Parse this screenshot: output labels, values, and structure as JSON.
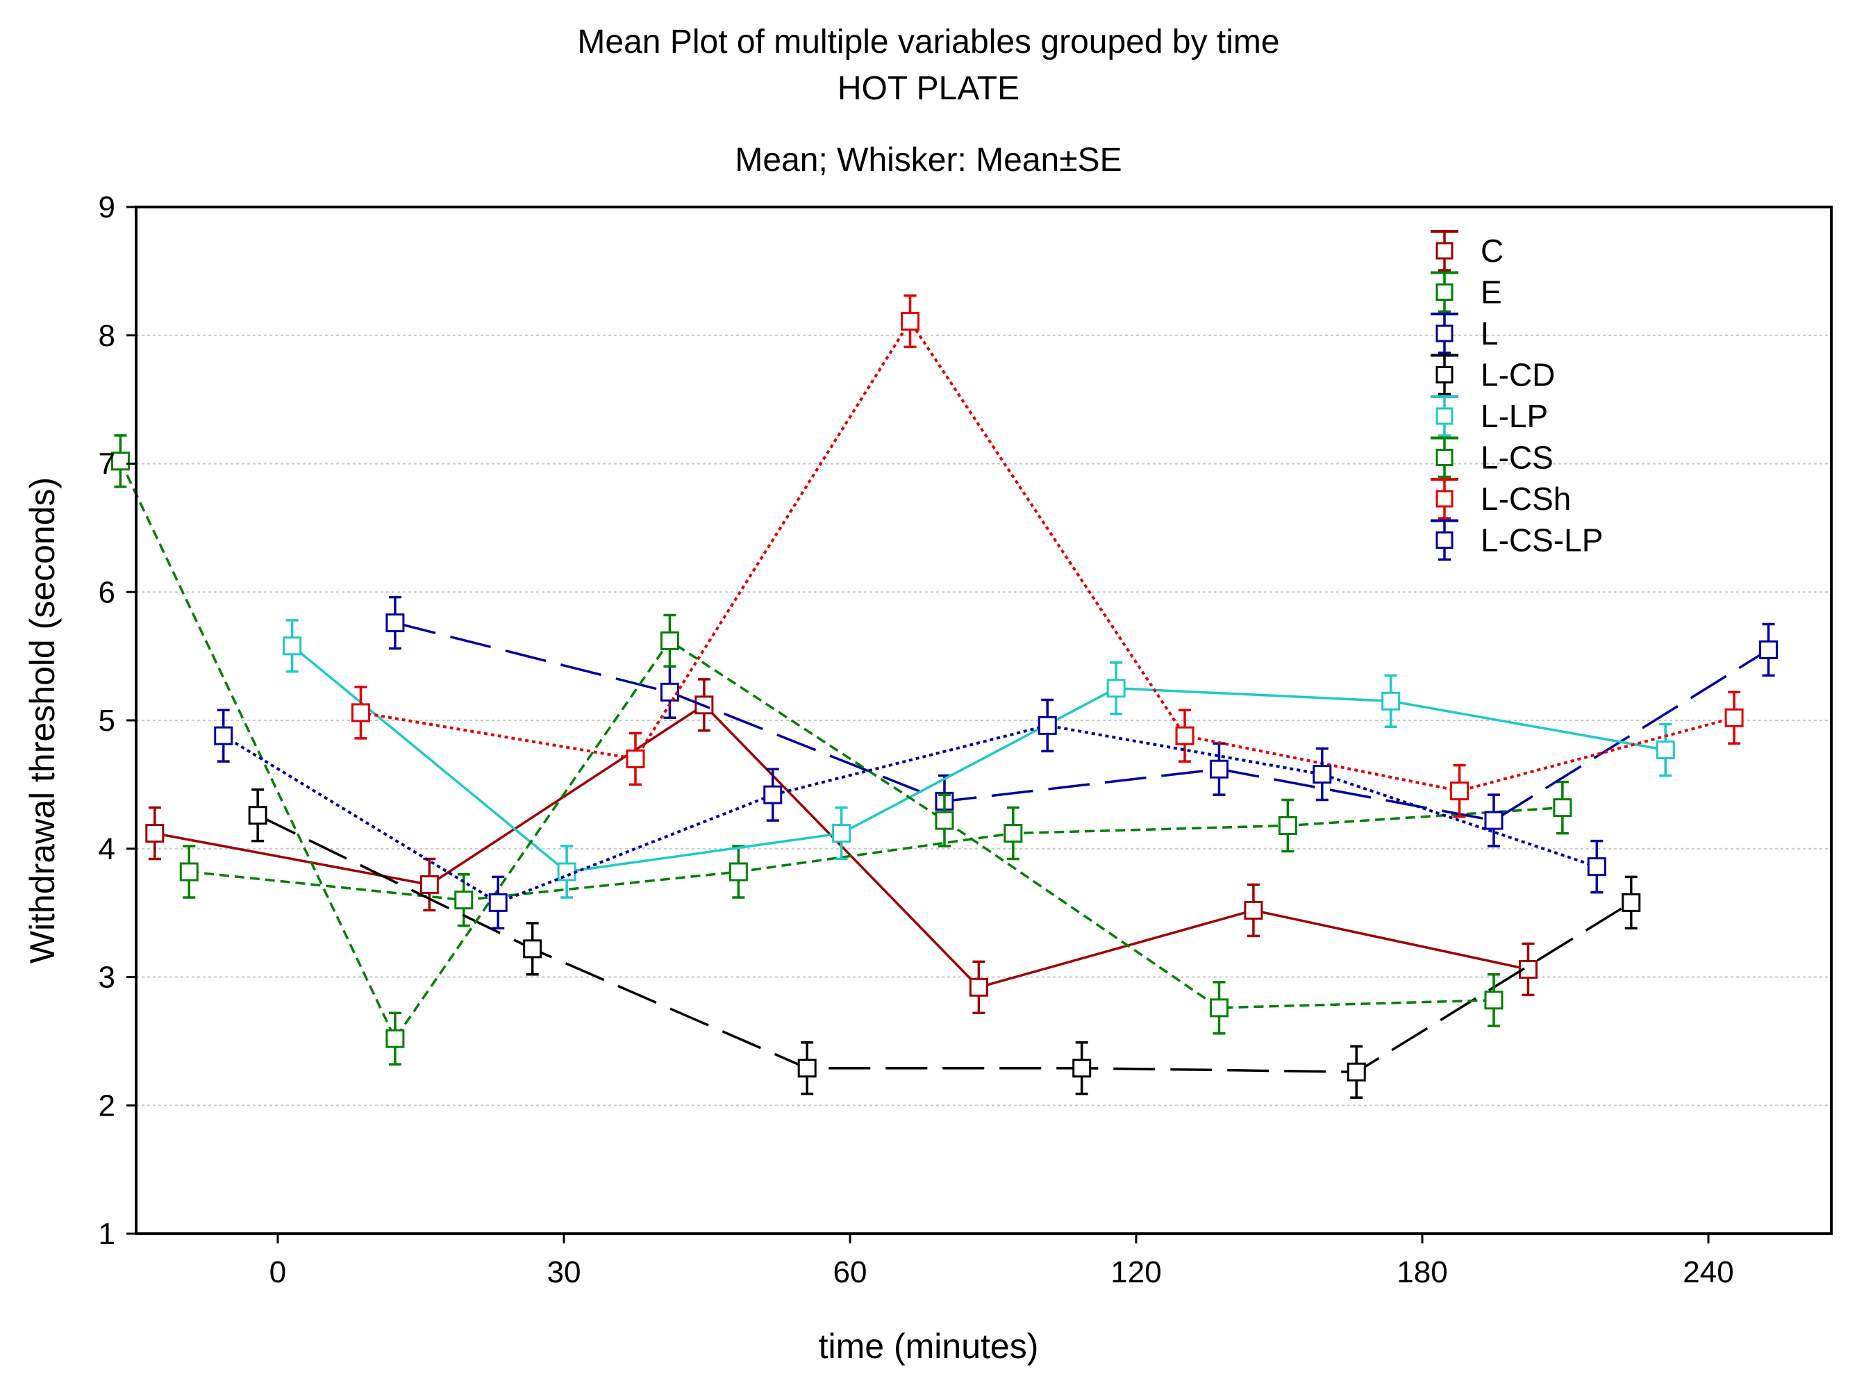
{
  "chart_data": {
    "type": "line",
    "title": "Mean Plot of multiple variables grouped by time",
    "subtitle": "HOT PLATE",
    "subtitle2": "Mean; Whisker: Mean±SE",
    "xlabel": "time (minutes)",
    "ylabel": "Withdrawal threshold (seconds)",
    "categories": [
      "0",
      "30",
      "60",
      "120",
      "180",
      "240"
    ],
    "ylim": [
      1,
      9
    ],
    "yticks": [
      "1",
      "2",
      "3",
      "4",
      "5",
      "6",
      "7",
      "8",
      "9"
    ],
    "grid": true,
    "legend_position": "top-right",
    "series": [
      {
        "name": "C",
        "color": "#a00000",
        "style": "solid",
        "points": [
          {
            "x": -0.43,
            "y": 4.12,
            "se": 0.2
          },
          {
            "x": 0.53,
            "y": 3.72,
            "se": 0.2
          },
          {
            "x": 1.49,
            "y": 5.12,
            "se": 0.2
          },
          {
            "x": 2.45,
            "y": 2.92,
            "se": 0.2
          },
          {
            "x": 3.41,
            "y": 3.52,
            "se": 0.2
          },
          {
            "x": 4.37,
            "y": 3.06,
            "se": 0.2
          }
        ]
      },
      {
        "name": "E",
        "color": "#008000",
        "style": "dash",
        "points": [
          {
            "x": -0.31,
            "y": 3.82,
            "se": 0.2
          },
          {
            "x": 0.65,
            "y": 3.6,
            "se": 0.2
          },
          {
            "x": 1.61,
            "y": 3.82,
            "se": 0.2
          },
          {
            "x": 2.57,
            "y": 4.12,
            "se": 0.2
          },
          {
            "x": 3.53,
            "y": 4.18,
            "se": 0.2
          },
          {
            "x": 4.49,
            "y": 4.32,
            "se": 0.2
          }
        ]
      },
      {
        "name": "L",
        "color": "#0000a0",
        "style": "longdash",
        "points": [
          {
            "x": 0.41,
            "y": 5.76,
            "se": 0.2
          },
          {
            "x": 1.37,
            "y": 5.22,
            "se": 0.2
          },
          {
            "x": 2.33,
            "y": 4.37,
            "se": 0.2
          },
          {
            "x": 3.29,
            "y": 4.62,
            "se": 0.2
          },
          {
            "x": 4.25,
            "y": 4.22,
            "se": 0.2
          },
          {
            "x": 5.21,
            "y": 5.55,
            "se": 0.2
          }
        ]
      },
      {
        "name": "L-CD",
        "color": "#000000",
        "style": "longdash",
        "points": [
          {
            "x": -0.07,
            "y": 4.26,
            "se": 0.2
          },
          {
            "x": 0.89,
            "y": 3.22,
            "se": 0.2
          },
          {
            "x": 1.85,
            "y": 2.29,
            "se": 0.2
          },
          {
            "x": 2.81,
            "y": 2.29,
            "se": 0.2
          },
          {
            "x": 3.77,
            "y": 2.26,
            "se": 0.2
          },
          {
            "x": 4.73,
            "y": 3.58,
            "se": 0.2
          }
        ]
      },
      {
        "name": "L-LP",
        "color": "#20c8c8",
        "style": "solid",
        "points": [
          {
            "x": 0.05,
            "y": 5.58,
            "se": 0.2
          },
          {
            "x": 1.01,
            "y": 3.82,
            "se": 0.2
          },
          {
            "x": 1.97,
            "y": 4.12,
            "se": 0.2
          },
          {
            "x": 2.93,
            "y": 5.25,
            "se": 0.2
          },
          {
            "x": 3.89,
            "y": 5.15,
            "se": 0.2
          },
          {
            "x": 4.85,
            "y": 4.77,
            "se": 0.2
          }
        ]
      },
      {
        "name": "L-CS",
        "color": "#008000",
        "style": "dash",
        "points": [
          {
            "x": -0.55,
            "y": 7.02,
            "se": 0.2
          },
          {
            "x": 0.41,
            "y": 2.52,
            "se": 0.2
          },
          {
            "x": 1.37,
            "y": 5.62,
            "se": 0.2
          },
          {
            "x": 2.33,
            "y": 4.22,
            "se": 0.2
          },
          {
            "x": 3.29,
            "y": 2.76,
            "se": 0.2
          },
          {
            "x": 4.25,
            "y": 2.82,
            "se": 0.2
          }
        ]
      },
      {
        "name": "L-CSh",
        "color": "#e00000",
        "style": "dot",
        "points": [
          {
            "x": 0.29,
            "y": 5.06,
            "se": 0.2
          },
          {
            "x": 1.25,
            "y": 4.7,
            "se": 0.2
          },
          {
            "x": 2.21,
            "y": 8.11,
            "se": 0.2
          },
          {
            "x": 3.17,
            "y": 4.88,
            "se": 0.2
          },
          {
            "x": 4.13,
            "y": 4.45,
            "se": 0.2
          },
          {
            "x": 5.09,
            "y": 5.02,
            "se": 0.2
          }
        ]
      },
      {
        "name": "L-CS-LP",
        "color": "#0000a0",
        "style": "dot",
        "points": [
          {
            "x": -0.19,
            "y": 4.88,
            "se": 0.2
          },
          {
            "x": 0.77,
            "y": 3.58,
            "se": 0.2
          },
          {
            "x": 1.73,
            "y": 4.42,
            "se": 0.2
          },
          {
            "x": 2.69,
            "y": 4.96,
            "se": 0.2
          },
          {
            "x": 3.65,
            "y": 4.58,
            "se": 0.2
          },
          {
            "x": 4.61,
            "y": 3.86,
            "se": 0.2
          }
        ]
      }
    ]
  }
}
